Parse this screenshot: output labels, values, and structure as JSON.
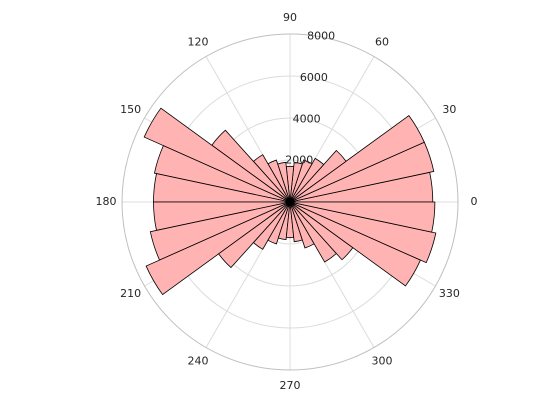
{
  "chart_data": {
    "type": "polar_histogram",
    "bins": [
      0,
      12,
      24,
      36,
      48,
      60,
      72,
      84,
      96,
      108,
      120,
      132,
      144,
      156,
      168,
      180,
      192,
      204,
      216,
      228,
      240,
      252,
      264,
      276,
      288,
      300,
      312,
      324,
      336,
      348,
      360
    ],
    "values": [
      6800,
      7000,
      7000,
      3300,
      2400,
      2100,
      1900,
      1700,
      1900,
      2100,
      2600,
      4600,
      7600,
      6600,
      6500,
      6500,
      6800,
      7500,
      4200,
      2600,
      2100,
      1800,
      1700,
      1900,
      2300,
      3300,
      3700,
      6800,
      7100,
      6900
    ],
    "color": "#ffb3b3",
    "edgecolor": "#000000",
    "rlim": [
      0,
      8000
    ],
    "rticks": [
      2000,
      4000,
      6000,
      8000
    ],
    "thetaticks": [
      0,
      30,
      60,
      90,
      120,
      150,
      180,
      210,
      240,
      270,
      300,
      330
    ],
    "grid": true
  }
}
